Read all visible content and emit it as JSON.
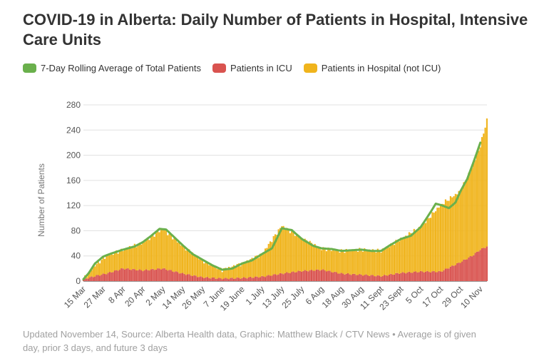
{
  "header": {
    "title": "COVID-19 in Alberta: Daily Number of Patients in Hospital, Intensive Care Units"
  },
  "footer": {
    "source": "Updated November 14, Source: Alberta Health data, Graphic: Matthew Black / CTV News • Average is of given day, prior 3 days, and future 3 days"
  },
  "colors": {
    "average": "#6ab04c",
    "icu": "#d9534f",
    "hospital": "#f0b41c",
    "grid": "#e0e0e0",
    "axis": "#999999"
  },
  "chart_data": {
    "type": "bar",
    "stacked": true,
    "ylabel": "Number of Patients",
    "ylim": [
      0,
      280
    ],
    "y_ticks": [
      0,
      40,
      80,
      120,
      160,
      200,
      240,
      280
    ],
    "grid": true,
    "legend_position": "top-left",
    "x_start": "2020-03-15",
    "x_end": "2020-11-14",
    "x_tick_labels": [
      {
        "label": "15 Mar",
        "date": "2020-03-15"
      },
      {
        "label": "27 Mar",
        "date": "2020-03-27"
      },
      {
        "label": "8 Apr",
        "date": "2020-04-08"
      },
      {
        "label": "20 Apr",
        "date": "2020-04-20"
      },
      {
        "label": "2 May",
        "date": "2020-05-02"
      },
      {
        "label": "14 May",
        "date": "2020-05-14"
      },
      {
        "label": "26 May",
        "date": "2020-05-26"
      },
      {
        "label": "7 June",
        "date": "2020-06-07"
      },
      {
        "label": "19 June",
        "date": "2020-06-19"
      },
      {
        "label": "1 July",
        "date": "2020-07-01"
      },
      {
        "label": "13 July",
        "date": "2020-07-13"
      },
      {
        "label": "25 July",
        "date": "2020-07-25"
      },
      {
        "label": "6 Aug",
        "date": "2020-08-06"
      },
      {
        "label": "18 Aug",
        "date": "2020-08-18"
      },
      {
        "label": "30 Aug",
        "date": "2020-08-30"
      },
      {
        "label": "11 Sept",
        "date": "2020-09-11"
      },
      {
        "label": "23 Sept",
        "date": "2020-09-23"
      },
      {
        "label": "5 Oct",
        "date": "2020-10-05"
      },
      {
        "label": "17 Oct",
        "date": "2020-10-17"
      },
      {
        "label": "29 Oct",
        "date": "2020-10-29"
      },
      {
        "label": "10 Nov",
        "date": "2020-11-10"
      }
    ],
    "series": [
      {
        "name": "7-Day Rolling Average of Total Patients",
        "kind": "line",
        "points": [
          {
            "date": "2020-03-15",
            "value": 3
          },
          {
            "date": "2020-03-18",
            "value": 12
          },
          {
            "date": "2020-03-22",
            "value": 28
          },
          {
            "date": "2020-03-27",
            "value": 39
          },
          {
            "date": "2020-04-01",
            "value": 44
          },
          {
            "date": "2020-04-08",
            "value": 50
          },
          {
            "date": "2020-04-15",
            "value": 55
          },
          {
            "date": "2020-04-20",
            "value": 62
          },
          {
            "date": "2020-04-25",
            "value": 72
          },
          {
            "date": "2020-04-30",
            "value": 83
          },
          {
            "date": "2020-05-04",
            "value": 82
          },
          {
            "date": "2020-05-08",
            "value": 72
          },
          {
            "date": "2020-05-14",
            "value": 57
          },
          {
            "date": "2020-05-20",
            "value": 43
          },
          {
            "date": "2020-05-26",
            "value": 34
          },
          {
            "date": "2020-06-01",
            "value": 25
          },
          {
            "date": "2020-06-07",
            "value": 18
          },
          {
            "date": "2020-06-13",
            "value": 20
          },
          {
            "date": "2020-06-19",
            "value": 28
          },
          {
            "date": "2020-06-25",
            "value": 33
          },
          {
            "date": "2020-07-01",
            "value": 43
          },
          {
            "date": "2020-07-07",
            "value": 52
          },
          {
            "date": "2020-07-13",
            "value": 84
          },
          {
            "date": "2020-07-19",
            "value": 81
          },
          {
            "date": "2020-07-25",
            "value": 67
          },
          {
            "date": "2020-08-01",
            "value": 56
          },
          {
            "date": "2020-08-06",
            "value": 52
          },
          {
            "date": "2020-08-12",
            "value": 51
          },
          {
            "date": "2020-08-18",
            "value": 48
          },
          {
            "date": "2020-08-24",
            "value": 49
          },
          {
            "date": "2020-08-30",
            "value": 50
          },
          {
            "date": "2020-09-05",
            "value": 48
          },
          {
            "date": "2020-09-11",
            "value": 48
          },
          {
            "date": "2020-09-17",
            "value": 58
          },
          {
            "date": "2020-09-23",
            "value": 67
          },
          {
            "date": "2020-09-29",
            "value": 72
          },
          {
            "date": "2020-10-05",
            "value": 86
          },
          {
            "date": "2020-10-11",
            "value": 110
          },
          {
            "date": "2020-10-14",
            "value": 123
          },
          {
            "date": "2020-10-17",
            "value": 121
          },
          {
            "date": "2020-10-22",
            "value": 116
          },
          {
            "date": "2020-10-26",
            "value": 125
          },
          {
            "date": "2020-10-29",
            "value": 143
          },
          {
            "date": "2020-11-02",
            "value": 162
          },
          {
            "date": "2020-11-06",
            "value": 190
          },
          {
            "date": "2020-11-10",
            "value": 220
          }
        ]
      },
      {
        "name": "Patients in ICU",
        "kind": "stack",
        "points": [
          {
            "date": "2020-03-15",
            "value": 3
          },
          {
            "date": "2020-03-22",
            "value": 8
          },
          {
            "date": "2020-03-29",
            "value": 12
          },
          {
            "date": "2020-04-08",
            "value": 20
          },
          {
            "date": "2020-04-20",
            "value": 17
          },
          {
            "date": "2020-05-02",
            "value": 20
          },
          {
            "date": "2020-05-14",
            "value": 12
          },
          {
            "date": "2020-05-26",
            "value": 6
          },
          {
            "date": "2020-06-07",
            "value": 4
          },
          {
            "date": "2020-06-19",
            "value": 5
          },
          {
            "date": "2020-07-01",
            "value": 7
          },
          {
            "date": "2020-07-13",
            "value": 12
          },
          {
            "date": "2020-07-25",
            "value": 16
          },
          {
            "date": "2020-08-06",
            "value": 18
          },
          {
            "date": "2020-08-18",
            "value": 12
          },
          {
            "date": "2020-08-30",
            "value": 10
          },
          {
            "date": "2020-09-11",
            "value": 8
          },
          {
            "date": "2020-09-23",
            "value": 13
          },
          {
            "date": "2020-10-05",
            "value": 15
          },
          {
            "date": "2020-10-17",
            "value": 15
          },
          {
            "date": "2020-10-29",
            "value": 30
          },
          {
            "date": "2020-11-05",
            "value": 40
          },
          {
            "date": "2020-11-10",
            "value": 50
          },
          {
            "date": "2020-11-14",
            "value": 55
          }
        ]
      },
      {
        "name": "Patients in Hospital (not ICU)",
        "kind": "stack",
        "points": [
          {
            "date": "2020-03-15",
            "value": 0
          },
          {
            "date": "2020-03-22",
            "value": 17
          },
          {
            "date": "2020-03-29",
            "value": 28
          },
          {
            "date": "2020-04-08",
            "value": 30
          },
          {
            "date": "2020-04-20",
            "value": 44
          },
          {
            "date": "2020-05-02",
            "value": 63
          },
          {
            "date": "2020-05-14",
            "value": 44
          },
          {
            "date": "2020-05-26",
            "value": 27
          },
          {
            "date": "2020-06-07",
            "value": 14
          },
          {
            "date": "2020-06-19",
            "value": 23
          },
          {
            "date": "2020-07-01",
            "value": 36
          },
          {
            "date": "2020-07-13",
            "value": 76
          },
          {
            "date": "2020-07-25",
            "value": 52
          },
          {
            "date": "2020-08-06",
            "value": 34
          },
          {
            "date": "2020-08-18",
            "value": 36
          },
          {
            "date": "2020-08-30",
            "value": 40
          },
          {
            "date": "2020-09-11",
            "value": 40
          },
          {
            "date": "2020-09-23",
            "value": 54
          },
          {
            "date": "2020-10-05",
            "value": 71
          },
          {
            "date": "2020-10-17",
            "value": 106
          },
          {
            "date": "2020-10-29",
            "value": 113
          },
          {
            "date": "2020-11-05",
            "value": 140
          },
          {
            "date": "2020-11-10",
            "value": 165
          },
          {
            "date": "2020-11-14",
            "value": 201
          }
        ]
      }
    ]
  }
}
